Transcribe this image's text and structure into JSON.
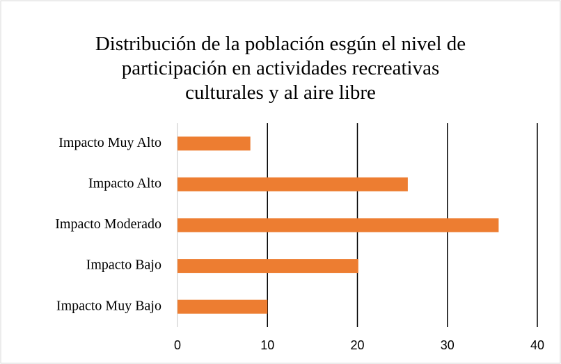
{
  "chart_data": {
    "type": "bar",
    "orientation": "horizontal",
    "title": [
      "Distribución de la población esgún el nivel de",
      "participación en actividades recreativas",
      "culturales y al aire libre"
    ],
    "categories": [
      "Impacto Muy Alto",
      "Impacto Alto",
      "Impacto Moderado",
      "Impacto Bajo",
      "Impacto Muy Bajo"
    ],
    "values": [
      8.1,
      25.6,
      35.7,
      20.1,
      10.0
    ],
    "color": "#ed7d31",
    "xlim": [
      0,
      40
    ],
    "xticks": [
      0,
      10,
      20,
      30,
      40
    ],
    "grid": true
  }
}
